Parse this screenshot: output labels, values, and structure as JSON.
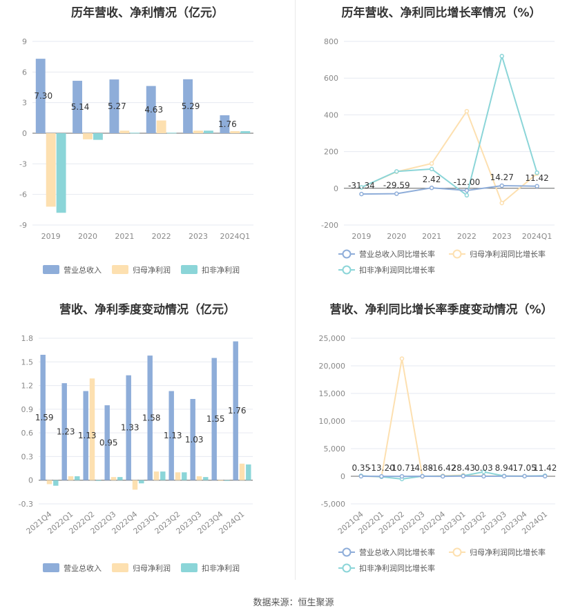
{
  "source_label": "数据来源：恒生聚源",
  "charts": {
    "annual_amount": {
      "title": "历年营收、净利情况（亿元）",
      "chart_data": {
        "type": "bar",
        "categories": [
          "2019",
          "2020",
          "2021",
          "2022",
          "2023",
          "2024Q1"
        ],
        "ylim": [
          -9,
          9
        ],
        "yticks": [
          -9,
          -6,
          -3,
          0,
          3,
          6,
          9
        ],
        "series": [
          {
            "name": "营业总收入",
            "color": "#8eadd9",
            "values": [
              7.3,
              5.14,
              5.27,
              4.63,
              5.29,
              1.76
            ],
            "labels": [
              "7.30",
              "5.14",
              "5.27",
              "4.63",
              "5.29",
              "1.76"
            ]
          },
          {
            "name": "归母净利润",
            "color": "#fde0b0",
            "values": [
              -7.2,
              -0.6,
              0.25,
              1.25,
              0.25,
              0.2
            ]
          },
          {
            "name": "扣非净利润",
            "color": "#8bd5d8",
            "values": [
              -7.8,
              -0.65,
              0.05,
              0.05,
              0.25,
              0.2
            ]
          }
        ]
      }
    },
    "annual_growth": {
      "title": "历年营收、净利同比增长率情况（%）",
      "chart_data": {
        "type": "line",
        "categories": [
          "2019",
          "2020",
          "2021",
          "2022",
          "2023",
          "2024Q1"
        ],
        "ylim": [
          -200,
          800
        ],
        "yticks": [
          -200,
          0,
          200,
          400,
          600,
          800
        ],
        "series": [
          {
            "name": "营业总收入同比增长率",
            "color": "#8eadd9",
            "values": [
              -31.34,
              -29.59,
              2.42,
              -12.0,
              14.27,
              11.42
            ],
            "labels": [
              "-31.34",
              "-29.59",
              "2.42",
              "-12.00",
              "14.27",
              "11.42"
            ]
          },
          {
            "name": "归母净利润同比增长率",
            "color": "#fde0b0",
            "values": [
              5,
              90,
              135,
              420,
              -80,
              80
            ]
          },
          {
            "name": "扣非净利润同比增长率",
            "color": "#8bd5d8",
            "values": [
              5,
              92,
              105,
              -38,
              720,
              85
            ]
          }
        ]
      }
    },
    "quarterly_amount": {
      "title": "营收、净利季度变动情况（亿元）",
      "chart_data": {
        "type": "bar",
        "categories": [
          "2021Q4",
          "2022Q1",
          "2022Q2",
          "2022Q3",
          "2022Q4",
          "2023Q1",
          "2023Q2",
          "2023Q3",
          "2023Q4",
          "2024Q1"
        ],
        "ylim": [
          -0.3,
          1.8
        ],
        "yticks": [
          -0.3,
          0,
          0.3,
          0.6,
          0.9,
          1.2,
          1.5,
          1.8
        ],
        "series": [
          {
            "name": "营业总收入",
            "color": "#8eadd9",
            "values": [
              1.59,
              1.23,
              1.13,
              0.95,
              1.33,
              1.58,
              1.13,
              1.03,
              1.55,
              1.76
            ],
            "labels": [
              "1.59",
              "1.23",
              "1.13",
              "0.95",
              "1.33",
              "1.58",
              "1.13",
              "1.03",
              "1.55",
              "1.76"
            ]
          },
          {
            "name": "归母净利润",
            "color": "#fde0b0",
            "values": [
              -0.05,
              0.05,
              1.29,
              0.04,
              -0.12,
              0.11,
              0.1,
              0.05,
              0.0,
              0.21
            ]
          },
          {
            "name": "扣非净利润",
            "color": "#8bd5d8",
            "values": [
              -0.07,
              0.05,
              0.0,
              0.04,
              -0.04,
              0.11,
              0.1,
              0.04,
              0.0,
              0.2
            ]
          }
        ]
      }
    },
    "quarterly_growth": {
      "title": "营收、净利同比增长率季度变动情况（%）",
      "chart_data": {
        "type": "line",
        "categories": [
          "2021Q4",
          "2022Q1",
          "2022Q2",
          "2022Q3",
          "2022Q4",
          "2023Q1",
          "2023Q2",
          "2023Q3",
          "2023Q4",
          "2024Q1"
        ],
        "ylim": [
          -5000,
          25000
        ],
        "yticks": [
          -5000,
          0,
          5000,
          10000,
          15000,
          20000,
          25000
        ],
        "yticklabels": [
          "-5,000",
          "0",
          "5,000",
          "10,000",
          "15,000",
          "20,000",
          "25,000"
        ],
        "series": [
          {
            "name": "营业总收入同比增长率",
            "color": "#8eadd9",
            "values": [
              0.35,
              -13.2,
              -10.71,
              -4.88,
              -16.42,
              28.43,
              0.03,
              8.94,
              17.05,
              11.42
            ],
            "labels": [
              "0.35",
              "-13.20",
              "-10.71",
              "-4.88",
              "-16.42",
              "28.43",
              "0.03",
              "8.94",
              "17.05",
              "11.42"
            ]
          },
          {
            "name": "归母净利润同比增长率",
            "color": "#fde0b0",
            "values": [
              50,
              -100,
              21300,
              -50,
              100,
              200,
              50,
              50,
              30,
              80
            ]
          },
          {
            "name": "扣非净利润同比增长率",
            "color": "#8bd5d8",
            "values": [
              80,
              -100,
              -500,
              20,
              20,
              100,
              800,
              50,
              20,
              100
            ]
          }
        ]
      }
    }
  }
}
